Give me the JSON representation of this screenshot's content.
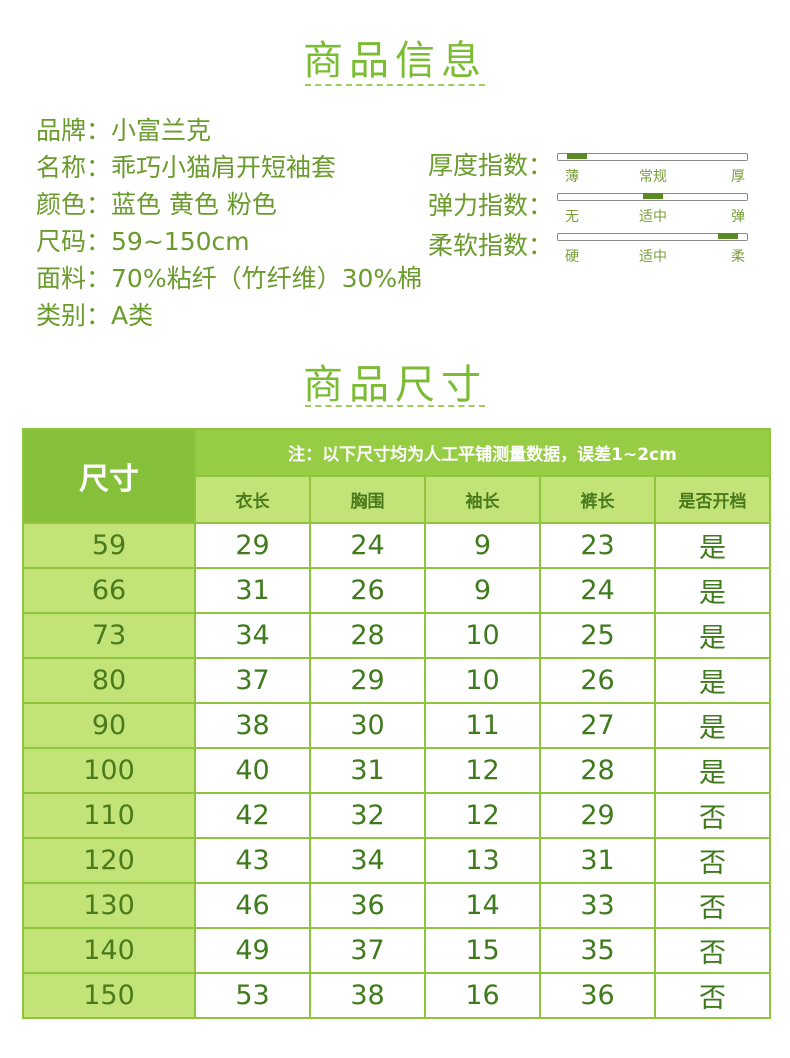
{
  "titles": {
    "info": "商品信息",
    "size": "商品尺寸"
  },
  "info": [
    {
      "label": "品牌",
      "sep": "：",
      "value": "小富兰克"
    },
    {
      "label": "名称",
      "sep": "：",
      "value": "乖巧小猫肩开短袖套"
    },
    {
      "label": "颜色",
      "sep": "：",
      "value": "蓝色 黄色 粉色"
    },
    {
      "label": "尺码",
      "sep": "：",
      "value": "59~150cm"
    },
    {
      "label": "面料",
      "sep": "：",
      "value": "70%粘纤（竹纤维）30%棉"
    },
    {
      "label": "类别",
      "sep": "：",
      "value": "A类"
    }
  ],
  "indices": [
    {
      "label": "厚度指数：",
      "left": "薄",
      "mid": "常规",
      "right": "厚",
      "level": 0.05
    },
    {
      "label": "弹力指数：",
      "left": "无",
      "mid": "适中",
      "right": "弹",
      "level": 0.5
    },
    {
      "label": "柔软指数：",
      "left": "硬",
      "mid": "适中",
      "right": "柔",
      "level": 0.95
    }
  ],
  "table": {
    "size_header": "尺寸",
    "note": "注：以下尺寸均为人工平铺测量数据，误差1~2cm",
    "columns": [
      "衣长",
      "胸围",
      "袖长",
      "裤长",
      "是否开档"
    ],
    "rows": [
      [
        "59",
        "29",
        "24",
        "9",
        "23",
        "是"
      ],
      [
        "66",
        "31",
        "26",
        "9",
        "24",
        "是"
      ],
      [
        "73",
        "34",
        "28",
        "10",
        "25",
        "是"
      ],
      [
        "80",
        "37",
        "29",
        "10",
        "26",
        "是"
      ],
      [
        "90",
        "38",
        "30",
        "11",
        "27",
        "是"
      ],
      [
        "100",
        "40",
        "31",
        "12",
        "28",
        "是"
      ],
      [
        "110",
        "42",
        "32",
        "12",
        "29",
        "否"
      ],
      [
        "120",
        "43",
        "34",
        "13",
        "31",
        "否"
      ],
      [
        "130",
        "46",
        "36",
        "14",
        "33",
        "否"
      ],
      [
        "140",
        "49",
        "37",
        "15",
        "35",
        "否"
      ],
      [
        "150",
        "53",
        "38",
        "16",
        "36",
        "否"
      ]
    ]
  },
  "colors": {
    "accent": "#7cbc34",
    "header": "#86bf3a",
    "light": "#c2e377",
    "text": "#3f7a1c"
  }
}
